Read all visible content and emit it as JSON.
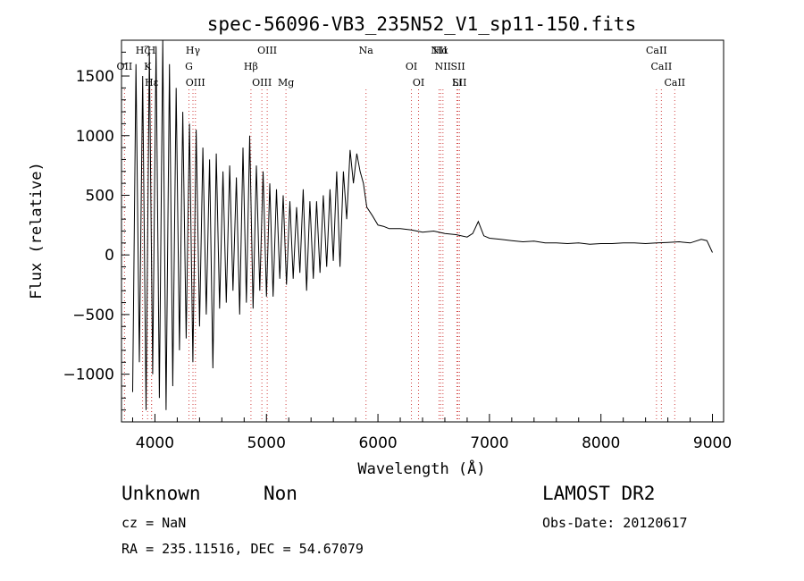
{
  "chart_data": {
    "type": "line",
    "title": "spec-56096-VB3_235N52_V1_sp11-150.fits",
    "xlabel": "Wavelength (Å)",
    "ylabel": "Flux (relative)",
    "xlim": [
      3700,
      9100
    ],
    "ylim": [
      -1400,
      1800
    ],
    "x_ticks": [
      "4000",
      "5000",
      "6000",
      "7000",
      "8000",
      "9000"
    ],
    "y_ticks": [
      "1500",
      "1000",
      "500",
      "0",
      "-500",
      "-1000"
    ],
    "grid": false,
    "series": [
      {
        "x": [
          3800,
          3830,
          3860,
          3890,
          3920,
          3950,
          3980,
          4010,
          4040,
          4070,
          4100,
          4130,
          4160,
          4190,
          4220,
          4250,
          4280,
          4310,
          4340,
          4370,
          4400,
          4430,
          4460,
          4490,
          4520,
          4550,
          4580,
          4610,
          4640,
          4670,
          4700,
          4730,
          4760,
          4790,
          4820,
          4850,
          4880,
          4910,
          4940,
          4970,
          5000,
          5030,
          5060,
          5090,
          5120,
          5150,
          5180,
          5210,
          5240,
          5270,
          5300,
          5330,
          5360,
          5390,
          5420,
          5450,
          5480,
          5510,
          5540,
          5570,
          5600,
          5630,
          5660,
          5690,
          5720,
          5750,
          5780,
          5810,
          5840,
          5870,
          5900,
          5950,
          6000,
          6050,
          6100,
          6200,
          6300,
          6400,
          6500,
          6600,
          6700,
          6800,
          6850,
          6900,
          6950,
          7000,
          7100,
          7200,
          7300,
          7400,
          7500,
          7600,
          7700,
          7800,
          7900,
          8000,
          8100,
          8200,
          8300,
          8400,
          8500,
          8600,
          8700,
          8800,
          8900,
          8950,
          9000
        ],
        "y": [
          -1150,
          1600,
          -900,
          1500,
          -1300,
          1700,
          -1000,
          1750,
          -1200,
          1800,
          -1300,
          1600,
          -1100,
          1400,
          -800,
          1200,
          -700,
          1100,
          -900,
          1050,
          -600,
          900,
          -500,
          800,
          -950,
          850,
          -450,
          700,
          -400,
          750,
          -300,
          650,
          -500,
          900,
          -400,
          1000,
          -450,
          750,
          -300,
          700,
          -350,
          600,
          -350,
          550,
          -200,
          500,
          -250,
          450,
          -200,
          400,
          -150,
          550,
          -300,
          450,
          -200,
          450,
          -150,
          500,
          -100,
          550,
          -50,
          700,
          -100,
          700,
          300,
          880,
          600,
          850,
          700,
          600,
          400,
          330,
          250,
          240,
          220,
          220,
          210,
          190,
          200,
          180,
          170,
          150,
          180,
          280,
          160,
          140,
          130,
          120,
          110,
          115,
          100,
          100,
          95,
          100,
          90,
          95,
          95,
          100,
          100,
          95,
          100,
          105,
          110,
          100,
          130,
          120,
          20
        ]
      }
    ],
    "lines": [
      {
        "name": "Hζ",
        "x": 3889
      },
      {
        "name": "K",
        "x": 3934
      },
      {
        "name": "Hε",
        "x": 3970
      },
      {
        "name": "H",
        "x": 3969
      },
      {
        "name": "OII",
        "x": 3727
      },
      {
        "name": "OIII",
        "x": 4363
      },
      {
        "name": "Hγ",
        "x": 4341
      },
      {
        "name": "G",
        "x": 4305
      },
      {
        "name": "OIII",
        "x": 4959
      },
      {
        "name": "OIII",
        "x": 5007
      },
      {
        "name": "Hβ",
        "x": 4861
      },
      {
        "name": "Mg",
        "x": 5175
      },
      {
        "name": "Na",
        "x": 5893
      },
      {
        "name": "OI",
        "x": 6300
      },
      {
        "name": "OI",
        "x": 6364
      },
      {
        "name": "Hα",
        "x": 6563
      },
      {
        "name": "SII",
        "x": 6717
      },
      {
        "name": "SII",
        "x": 6731
      },
      {
        "name": "NII",
        "x": 6548
      },
      {
        "name": "NII",
        "x": 6583
      },
      {
        "name": "Li",
        "x": 6708
      },
      {
        "name": "CaII",
        "x": 8498
      },
      {
        "name": "CaII",
        "x": 8542
      },
      {
        "name": "CaII",
        "x": 8662
      }
    ]
  },
  "footer": {
    "class": "Unknown",
    "subclass": "Non",
    "cz": "cz = NaN",
    "coords": "RA = 235.11516, DEC =  54.67079",
    "survey": "LAMOST DR2",
    "obs_date": "Obs-Date: 20120617"
  }
}
